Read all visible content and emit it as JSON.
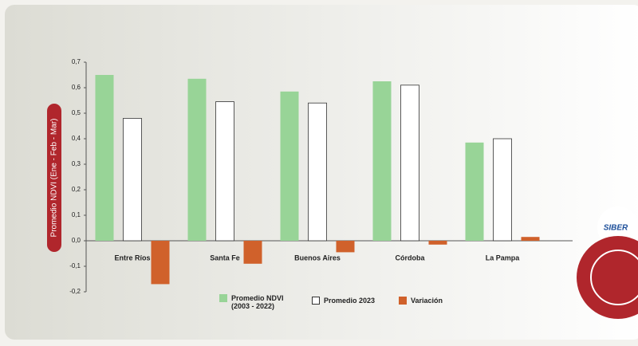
{
  "chart_data": {
    "type": "bar",
    "y_label": "Promedio NDVI (Ene - Feb - Mar)",
    "categories": [
      "Entre Ríos",
      "Santa Fe",
      "Buenos Aires",
      "Córdoba",
      "La Pampa"
    ],
    "series": [
      {
        "name": "Promedio NDVI (2003 - 2022)",
        "color": "#98d497",
        "values": [
          0.65,
          0.635,
          0.585,
          0.625,
          0.385
        ]
      },
      {
        "name": "Promedio 2023",
        "color": "#ffffff",
        "values": [
          0.48,
          0.545,
          0.54,
          0.61,
          0.4
        ]
      },
      {
        "name": "Variación",
        "color": "#d0612b",
        "values": [
          -0.17,
          -0.09,
          -0.045,
          -0.015,
          0.015
        ]
      }
    ],
    "ylim": [
      -0.2,
      0.7
    ],
    "yticks": [
      {
        "value": -0.2,
        "label": "-0,2"
      },
      {
        "value": -0.1,
        "label": "-0,1"
      },
      {
        "value": 0,
        "label": "0,0"
      },
      {
        "value": 0.1,
        "label": "0,1"
      },
      {
        "value": 0.2,
        "label": "0,2"
      },
      {
        "value": 0.3,
        "label": "0,3"
      },
      {
        "value": 0.4,
        "label": "0,4"
      },
      {
        "value": 0.5,
        "label": "0,5"
      },
      {
        "value": 0.6,
        "label": "0,6"
      },
      {
        "value": 0.7,
        "label": "0,7"
      }
    ],
    "legend": "bottom"
  }
}
